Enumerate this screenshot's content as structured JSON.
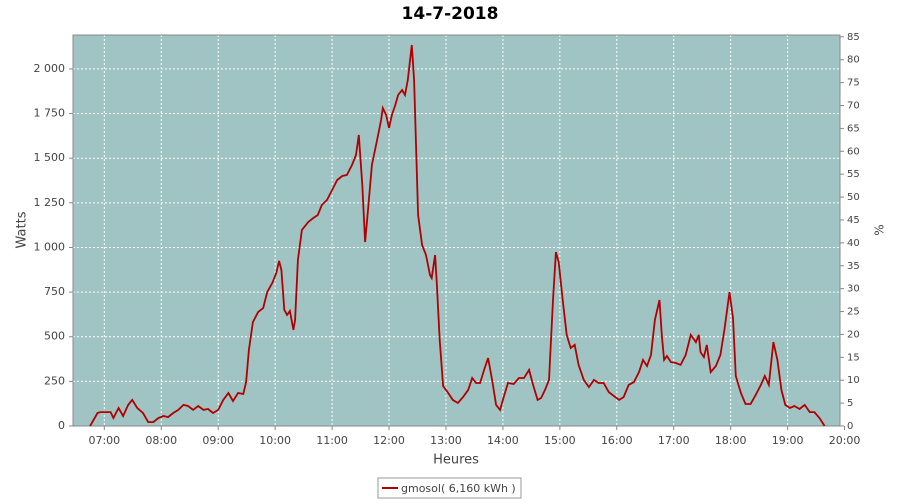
{
  "chart_data": {
    "type": "line",
    "title": "14-7-2018",
    "xlabel": "Heures",
    "ylabel": "Watts",
    "y2label": "%",
    "background": "#a0c4c4",
    "grid": true,
    "xlim": [
      6.45,
      19.92
    ],
    "ylim": [
      0,
      2190
    ],
    "y2lim": [
      0,
      85.4
    ],
    "xticks": [
      {
        "value": 7,
        "label": "07:00"
      },
      {
        "value": 8,
        "label": "08:00"
      },
      {
        "value": 9,
        "label": "09:00"
      },
      {
        "value": 10,
        "label": "10:00"
      },
      {
        "value": 11,
        "label": "11:00"
      },
      {
        "value": 12,
        "label": "12:00"
      },
      {
        "value": 13,
        "label": "13:00"
      },
      {
        "value": 14,
        "label": "14:00"
      },
      {
        "value": 15,
        "label": "15:00"
      },
      {
        "value": 16,
        "label": "16:00"
      },
      {
        "value": 17,
        "label": "17:00"
      },
      {
        "value": 18,
        "label": "18:00"
      },
      {
        "value": 19,
        "label": "19:00"
      },
      {
        "value": 20,
        "label": "20:00"
      }
    ],
    "yticks": [
      0,
      250,
      500,
      750,
      {
        "value": 1000,
        "label": "1 000"
      },
      {
        "value": 1250,
        "label": "1 250"
      },
      {
        "value": 1500,
        "label": "1 500"
      },
      {
        "value": 1750,
        "label": "1 750"
      },
      {
        "value": 2000,
        "label": "2 000"
      }
    ],
    "y2ticks": [
      0,
      5,
      10,
      15,
      20,
      25,
      30,
      35,
      40,
      45,
      50,
      55,
      60,
      65,
      70,
      75,
      80,
      85
    ],
    "x": [
      6.75,
      6.88,
      6.93,
      7.11,
      7.16,
      7.25,
      7.33,
      7.42,
      7.49,
      7.58,
      7.68,
      7.77,
      7.86,
      7.95,
      8.04,
      8.12,
      8.21,
      8.3,
      8.39,
      8.47,
      8.56,
      8.65,
      8.74,
      8.82,
      8.91,
      9.0,
      9.09,
      9.18,
      9.26,
      9.35,
      9.44,
      9.49,
      9.54,
      9.61,
      9.7,
      9.79,
      9.86,
      9.95,
      10.02,
      10.07,
      10.11,
      10.16,
      10.21,
      10.26,
      10.32,
      10.35,
      10.4,
      10.47,
      10.58,
      10.67,
      10.75,
      10.82,
      10.91,
      11.0,
      11.09,
      11.18,
      11.26,
      11.35,
      11.42,
      11.47,
      11.53,
      11.58,
      11.63,
      11.7,
      11.79,
      11.86,
      11.89,
      11.95,
      12.0,
      12.05,
      12.11,
      12.16,
      12.23,
      12.28,
      12.33,
      12.4,
      12.44,
      12.51,
      12.58,
      12.65,
      12.72,
      12.75,
      12.81,
      12.84,
      12.89,
      12.95,
      13.04,
      13.12,
      13.21,
      13.3,
      13.39,
      13.46,
      13.53,
      13.6,
      13.67,
      13.74,
      13.81,
      13.88,
      13.95,
      14.02,
      14.09,
      14.19,
      14.28,
      14.37,
      14.46,
      14.53,
      14.61,
      14.67,
      14.74,
      14.81,
      14.88,
      14.93,
      14.98,
      15.05,
      15.12,
      15.19,
      15.26,
      15.33,
      15.42,
      15.51,
      15.6,
      15.68,
      15.77,
      15.86,
      15.95,
      16.04,
      16.12,
      16.21,
      16.3,
      16.39,
      16.46,
      16.53,
      16.6,
      16.67,
      16.75,
      16.79,
      16.83,
      16.88,
      16.95,
      17.04,
      17.12,
      17.21,
      17.3,
      17.39,
      17.44,
      17.47,
      17.53,
      17.58,
      17.65,
      17.74,
      17.82,
      17.89,
      17.98,
      18.04,
      18.09,
      18.18,
      18.26,
      18.35,
      18.44,
      18.53,
      18.6,
      18.67,
      18.75,
      18.82,
      18.89,
      18.96,
      19.04,
      19.12,
      19.21,
      19.3,
      19.39,
      19.47,
      19.56,
      19.65
    ],
    "series": [
      {
        "name": "gmosol( 6,160 kWh )",
        "color": "#b00000",
        "values": [
          0,
          73,
          78,
          78,
          45,
          101,
          56,
          118,
          146,
          101,
          73,
          22,
          22,
          45,
          56,
          50,
          73,
          90,
          118,
          112,
          90,
          112,
          90,
          95,
          73,
          90,
          146,
          185,
          140,
          185,
          179,
          246,
          426,
          582,
          638,
          661,
          750,
          801,
          857,
          924,
          874,
          650,
          622,
          644,
          538,
          594,
          930,
          1098,
          1142,
          1165,
          1182,
          1238,
          1266,
          1322,
          1378,
          1400,
          1406,
          1462,
          1518,
          1630,
          1350,
          1030,
          1210,
          1462,
          1602,
          1714,
          1781,
          1742,
          1669,
          1742,
          1798,
          1854,
          1882,
          1854,
          1938,
          2134,
          1938,
          1182,
          1014,
          958,
          846,
          829,
          958,
          790,
          482,
          224,
          185,
          146,
          129,
          162,
          202,
          269,
          241,
          241,
          314,
          381,
          258,
          118,
          90,
          168,
          241,
          235,
          269,
          269,
          314,
          230,
          146,
          157,
          202,
          258,
          706,
          974,
          918,
          706,
          510,
          437,
          454,
          342,
          258,
          218,
          258,
          241,
          241,
          190,
          168,
          146,
          162,
          230,
          246,
          302,
          370,
          336,
          398,
          594,
          706,
          510,
          370,
          392,
          358,
          353,
          342,
          398,
          510,
          470,
          510,
          414,
          386,
          454,
          302,
          336,
          398,
          538,
          750,
          605,
          280,
          185,
          123,
          123,
          174,
          230,
          280,
          230,
          470,
          370,
          202,
          118,
          101,
          112,
          95,
          118,
          78,
          78,
          45,
          0
        ]
      }
    ]
  }
}
